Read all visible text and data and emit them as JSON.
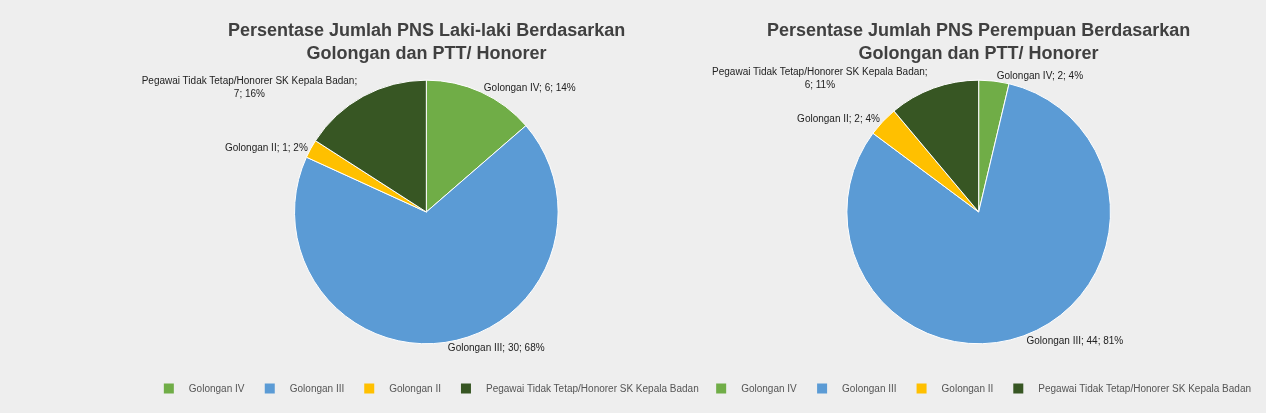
{
  "chart_data": [
    {
      "type": "pie",
      "title": "Persentase Jumlah PNS Laki-laki Berdasarkan Golongan dan PTT/ Honorer",
      "categories": [
        "Golongan IV",
        "Golongan III",
        "Golongan II",
        "Pegawai Tidak Tetap/Honorer SK Kepala Badan"
      ],
      "values": [
        6,
        30,
        1,
        7
      ],
      "colors": [
        "#70ad47",
        "#5b9bd5",
        "#ffc000",
        "#375623"
      ],
      "value_labels": [
        "Golongan IV; 6; 14%",
        "Golongan III; 30; 68%",
        "Golongan II; 1; 2%",
        "Pegawai Tidak Tetap/Honorer SK Kepala Badan; 7; 16%"
      ],
      "legend": "bottom"
    },
    {
      "type": "pie",
      "title": "Persentase Jumlah PNS Perempuan Berdasarkan Golongan dan PTT/ Honorer",
      "categories": [
        "Golongan IV",
        "Golongan III",
        "Golongan II",
        "Pegawai Tidak Tetap/Honorer SK Kepala Badan"
      ],
      "values": [
        2,
        44,
        2,
        6
      ],
      "colors": [
        "#70ad47",
        "#5b9bd5",
        "#ffc000",
        "#375623"
      ],
      "value_labels": [
        "Golongan IV; 2; 4%",
        "Golongan III; 44; 81%",
        "Golongan II; 2; 4%",
        "Pegawai Tidak Tetap/Honorer SK Kepala Badan; 6; 11%"
      ],
      "legend": "bottom"
    }
  ]
}
